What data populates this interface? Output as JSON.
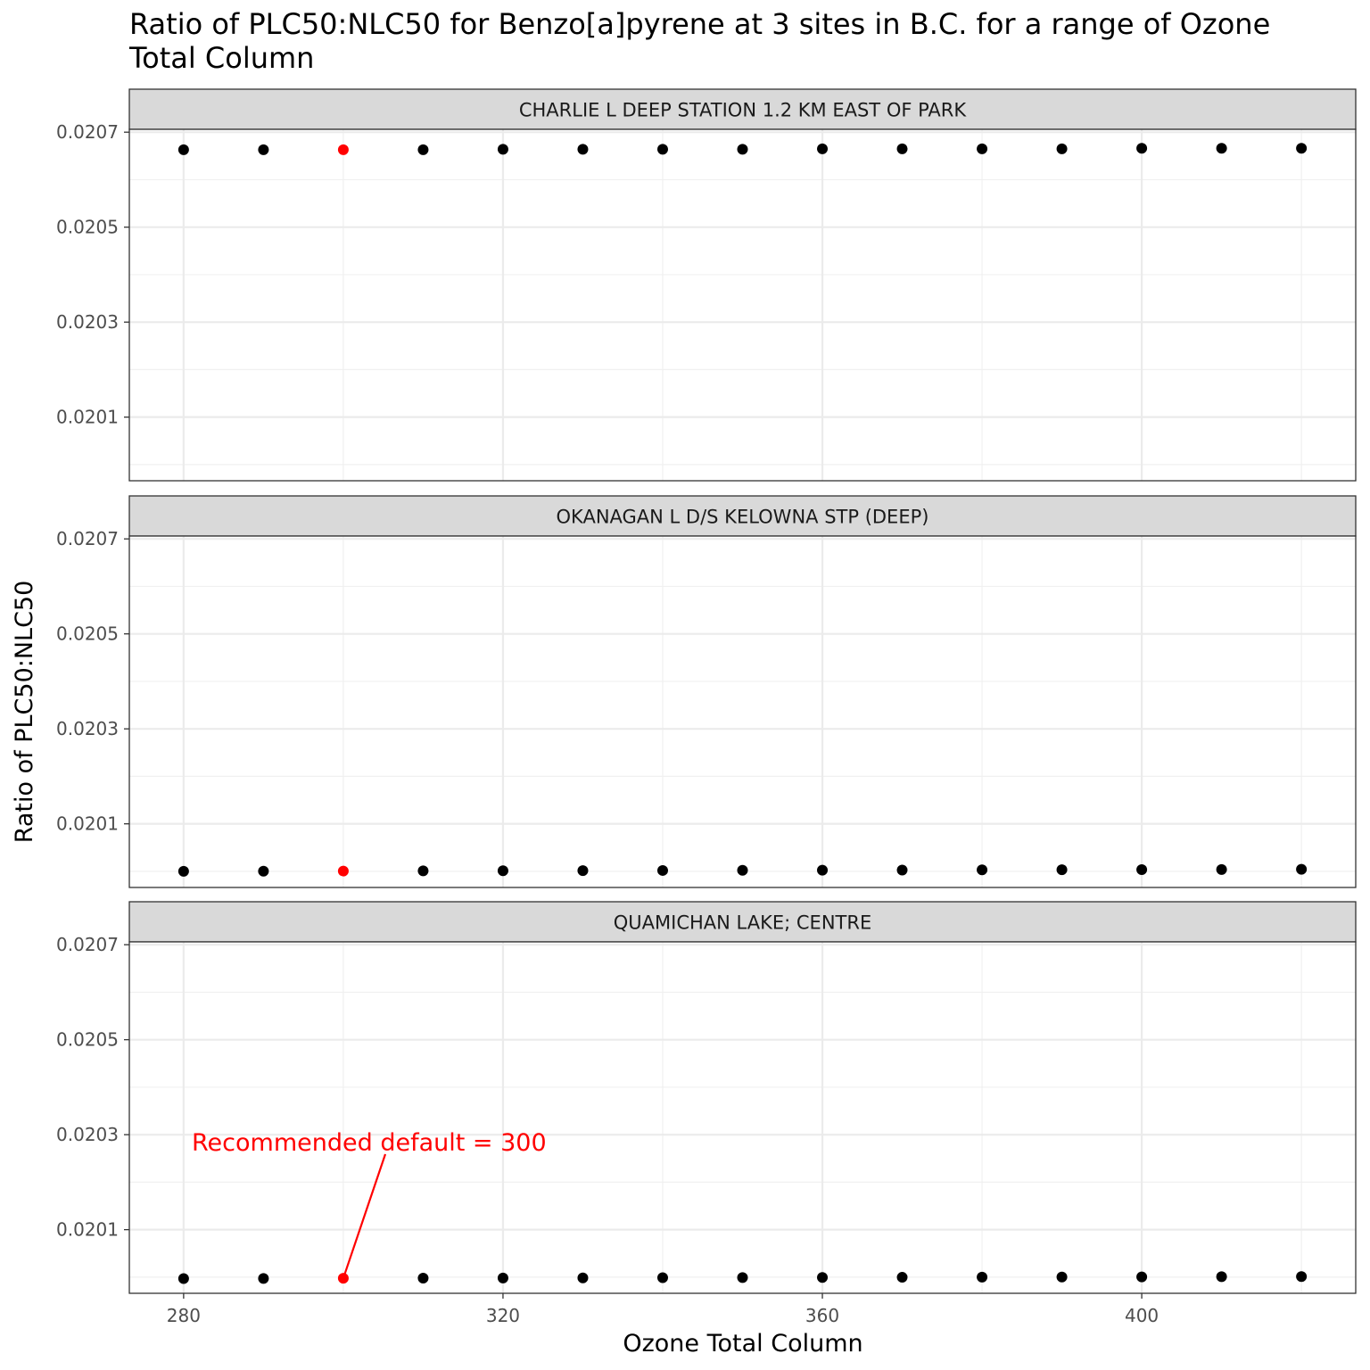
{
  "chart_data": {
    "type": "scatter",
    "title": "Ratio of PLC50:NLC50 for Benzo[a]pyrene at 3 sites in B.C. for a range of Ozone Total Column",
    "xlabel": "Ozone Total Column",
    "ylabel": "Ratio of PLC50:NLC50",
    "xlim": [
      273.2,
      426.8
    ],
    "ylim": [
      0.019966,
      0.020706
    ],
    "x_ticks": [
      280,
      320,
      360,
      400
    ],
    "x_tick_labels": [
      "280",
      "320",
      "360",
      "400"
    ],
    "y_ticks": [
      0.0201,
      0.0203,
      0.0205,
      0.0207
    ],
    "y_tick_labels": [
      "0.0201",
      "0.0203",
      "0.0205",
      "0.0207"
    ],
    "grid": true,
    "x": [
      280,
      290,
      300,
      310,
      320,
      330,
      340,
      350,
      360,
      370,
      380,
      390,
      400,
      410,
      420
    ],
    "highlight_x": 300,
    "highlight_color": "#ff0000",
    "point_color": "#000000",
    "panels": [
      {
        "name": "CHARLIE L DEEP STATION 1.2 KM EAST OF PARK",
        "values": [
          0.020663,
          0.020663,
          0.020663,
          0.020663,
          0.020664,
          0.020664,
          0.020664,
          0.020664,
          0.020665,
          0.020665,
          0.020665,
          0.020665,
          0.020666,
          0.020666,
          0.020666
        ]
      },
      {
        "name": "OKANAGAN L D/S KELOWNA STP (DEEP)",
        "values": [
          0.02,
          0.0200003,
          0.0200006,
          0.0200009,
          0.0200012,
          0.0200015,
          0.0200018,
          0.0200021,
          0.0200024,
          0.0200027,
          0.020003,
          0.0200033,
          0.0200036,
          0.0200039,
          0.0200042
        ]
      },
      {
        "name": "QUAMICHAN LAKE; CENTRE",
        "values": [
          0.019997,
          0.0199973,
          0.0199976,
          0.0199979,
          0.0199982,
          0.0199985,
          0.0199988,
          0.0199991,
          0.0199994,
          0.0199997,
          0.02,
          0.0200003,
          0.0200006,
          0.0200009,
          0.0200012
        ]
      }
    ],
    "annotation": {
      "text": "Recommended default = 300",
      "color": "#ff0000",
      "panel": 2,
      "x": 300
    }
  }
}
